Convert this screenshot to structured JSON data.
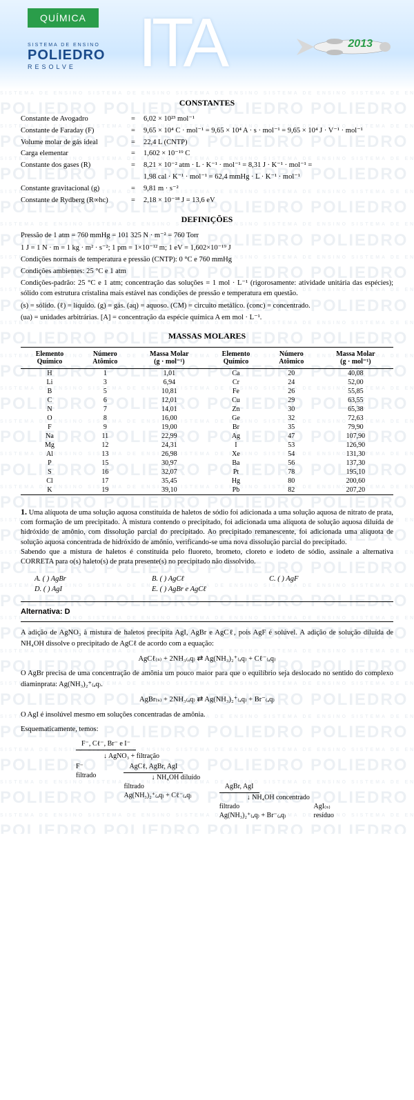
{
  "header": {
    "subject": "QUÍMICA",
    "exam": "ITA",
    "brand_tag1": "SISTEMA DE ENSINO",
    "brand_main": "POLIEDRO",
    "brand_tag2": "RESOLVE",
    "year": "2013",
    "colors": {
      "quimica_bg": "#2a9d4a",
      "brand_color": "#1a4a8a",
      "sky_top": "#e8f4ff",
      "sky_bottom": "#d0e8ff"
    }
  },
  "watermark": {
    "line1": "SISTEMA DE ENSINO",
    "line2": "POLIEDRO",
    "color": "#1a4a7a",
    "opacity": 0.08
  },
  "sections": {
    "constants_title": "CONSTANTES",
    "definitions_title": "DEFINIÇÕES",
    "masses_title": "MASSAS MOLARES"
  },
  "constants": [
    {
      "label": "Constante de Avogadro",
      "value": "6,02 × 10²³ mol⁻¹"
    },
    {
      "label": "Constante de Faraday (F)",
      "value": "9,65 × 10⁴ C · mol⁻¹ = 9,65 × 10⁴ A · s · mol⁻¹ = 9,65 × 10⁴ J · V⁻¹ · mol⁻¹"
    },
    {
      "label": "Volume molar de gás ideal",
      "value": "22,4 L (CNTP)"
    },
    {
      "label": "Carga elementar",
      "value": "1,602 × 10⁻¹⁹ C"
    },
    {
      "label": "Constante dos gases (R)",
      "value": "8,21 × 10⁻² atm · L · K⁻¹ · mol⁻¹ = 8,31 J · K⁻¹ · mol⁻¹ ="
    },
    {
      "label": "",
      "value": "1,98 cal · K⁻¹ · mol⁻¹ = 62,4 mmHg · L · K⁻¹ · mol⁻¹"
    },
    {
      "label": "Constante gravitacional (g)",
      "value": "9,81 m · s⁻²"
    },
    {
      "label": "Constante de Rydberg (R∞hc)",
      "value": "2,18 × 10⁻¹⁸ J = 13,6 eV"
    }
  ],
  "definitions": [
    "Pressão de 1 atm = 760 mmHg = 101 325 N · m⁻² = 760 Torr",
    "1 J = 1 N · m = 1 kg · m² · s⁻²; 1 pm = 1×10⁻¹² m; 1 eV = 1,602×10⁻¹⁹ J",
    "Condições normais de temperatura e pressão (CNTP): 0 °C e 760 mmHg",
    "Condições ambientes: 25 °C e 1 atm",
    "Condições-padrão: 25 °C e 1 atm; concentração das soluções = 1 mol · L⁻¹ (rigorosamente: atividade unitária das espécies); sólido com estrutura cristalina mais estável nas condições de pressão e temperatura em questão.",
    "(s) = sólido.   (ℓ) = líquido.   (g) = gás.   (aq) = aquoso.   (CM) = circuito metálico.   (conc) = concentrado.",
    "(ua) = unidades arbitrárias.   [A] = concentração da espécie química A em mol · L⁻¹."
  ],
  "mass_table": {
    "headers": [
      "Elemento Químico",
      "Número Atômico",
      "Massa Molar (g · mol⁻¹)",
      "Elemento Químico",
      "Número Atômico",
      "Massa Molar (g · mol⁻¹)"
    ],
    "rows": [
      [
        "H",
        "1",
        "1,01",
        "Ca",
        "20",
        "40,08"
      ],
      [
        "Li",
        "3",
        "6,94",
        "Cr",
        "24",
        "52,00"
      ],
      [
        "B",
        "5",
        "10,81",
        "Fe",
        "26",
        "55,85"
      ],
      [
        "C",
        "6",
        "12,01",
        "Cu",
        "29",
        "63,55"
      ],
      [
        "N",
        "7",
        "14,01",
        "Zn",
        "30",
        "65,38"
      ],
      [
        "O",
        "8",
        "16,00",
        "Ge",
        "32",
        "72,63"
      ],
      [
        "F",
        "9",
        "19,00",
        "Br",
        "35",
        "79,90"
      ],
      [
        "Na",
        "11",
        "22,99",
        "Ag",
        "47",
        "107,90"
      ],
      [
        "Mg",
        "12",
        "24,31",
        "I",
        "53",
        "126,90"
      ],
      [
        "Al",
        "13",
        "26,98",
        "Xe",
        "54",
        "131,30"
      ],
      [
        "P",
        "15",
        "30,97",
        "Ba",
        "56",
        "137,30"
      ],
      [
        "S",
        "16",
        "32,07",
        "Pt",
        "78",
        "195,10"
      ],
      [
        "Cl",
        "17",
        "35,45",
        "Hg",
        "80",
        "200,60"
      ],
      [
        "K",
        "19",
        "39,10",
        "Pb",
        "82",
        "207,20"
      ]
    ]
  },
  "question": {
    "number": "1.",
    "text": "Uma alíquota de uma solução aquosa constituída de haletos de sódio foi adicionada a uma solução aquosa de nitrato de prata, com formação de um precipitado. À mistura contendo o precipitado, foi adicionada uma alíquota de solução aquosa diluída de hidróxido de amônio, com dissolução parcial do precipitado. Ao precipitado remanescente, foi adicionada uma alíquota de solução aquosa concentrada de hidróxido de amônio, verificando-se uma nova dissolução parcial do precipitado.",
    "text2": "Sabendo que a mistura de haletos é constituída pelo fluoreto, brometo, cloreto e iodeto de sódio, assinale a alternativa CORRETA para o(s) haleto(s) de prata presente(s) no precipitado não dissolvido.",
    "alternatives": {
      "a": "A. (   ) AgBr",
      "b": "B. (   ) AgCℓ",
      "c": "C. (   ) AgF",
      "d": "D. (   ) AgI",
      "e": "E. (   ) AgBr e AgCℓ"
    }
  },
  "answer": {
    "header": "Alternativa: D",
    "p1": "A adição de AgNO₃ à mistura de haletos precipita AgI, AgBr e AgCℓ, pois AgF é solúvel. A adição de solução diluída de NH₄OH dissolve o precipitado de AgCℓ de acordo com a equação:",
    "eq1": "AgCℓ₍ₛ₎ + 2NH₃₍ₐq₎  ⇄  Ag(NH₃)₂⁺₍ₐq₎ + Cℓ⁻₍ₐq₎",
    "p2": "O AgBr precisa de uma concentração de amônia um pouco maior para que o equilíbrio seja deslocado no sentido do complexo diaminprata: Ag(NH₃)₂⁺₍ₐq₎.",
    "eq2": "AgBr₍ₛ₎ + 2NH₃₍ₐq₎  ⇄  Ag(NH₃)₂⁺₍ₐq₎ + Br⁻₍ₐq₎",
    "p3": "O AgI é insolúvel mesmo em soluções concentradas de amônia.",
    "p4": "Esquematicamente, temos:",
    "flow": {
      "start": "F⁻, Cℓ⁻, Br⁻ e I⁻",
      "step1": "AgNO₃ + filtração",
      "left1": "F⁻",
      "left1b": "filtrado",
      "right1": "AgCℓ, AgBr, AgI",
      "step2": "NH₄OH diluído",
      "left2": "filtrado",
      "left2b": "Ag(NH₃)₂⁺₍ₐq₎ + Cℓ⁻₍ₐq₎",
      "right2": "AgBr, AgI",
      "step3": "NH₄OH concentrado",
      "left3": "filtrado",
      "left3b": "Ag(NH₃)₂⁺₍ₐq₎ + Br⁻₍ₐq₎",
      "right3": "AgI₍ₛ₎",
      "right3b": "resíduo"
    }
  }
}
